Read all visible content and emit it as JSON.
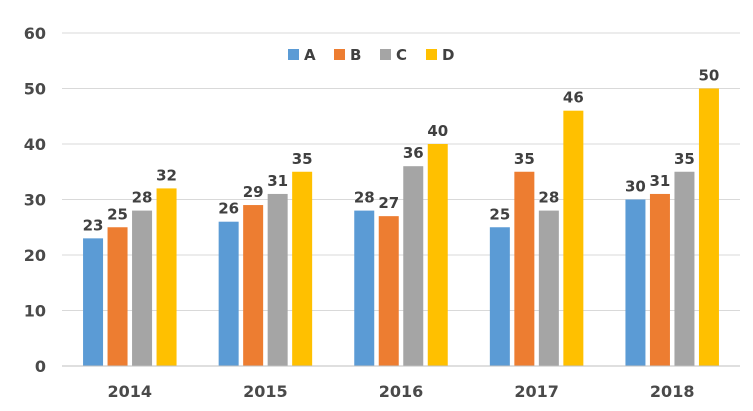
{
  "chart_data": {
    "type": "bar",
    "categories": [
      "2014",
      "2015",
      "2016",
      "2017",
      "2018"
    ],
    "series": [
      {
        "name": "A",
        "color": "#5b9bd5",
        "values": [
          23,
          26,
          28,
          25,
          30
        ]
      },
      {
        "name": "B",
        "color": "#ed7d31",
        "values": [
          25,
          29,
          27,
          35,
          31
        ]
      },
      {
        "name": "C",
        "color": "#a5a5a5",
        "values": [
          28,
          31,
          36,
          28,
          35
        ]
      },
      {
        "name": "D",
        "color": "#ffc000",
        "values": [
          32,
          35,
          40,
          46,
          50
        ]
      }
    ],
    "ylim": [
      0,
      60
    ],
    "yticks": [
      0,
      10,
      20,
      30,
      40,
      50,
      60
    ],
    "grid": true,
    "legend_position": "top-center",
    "data_labels": true
  }
}
